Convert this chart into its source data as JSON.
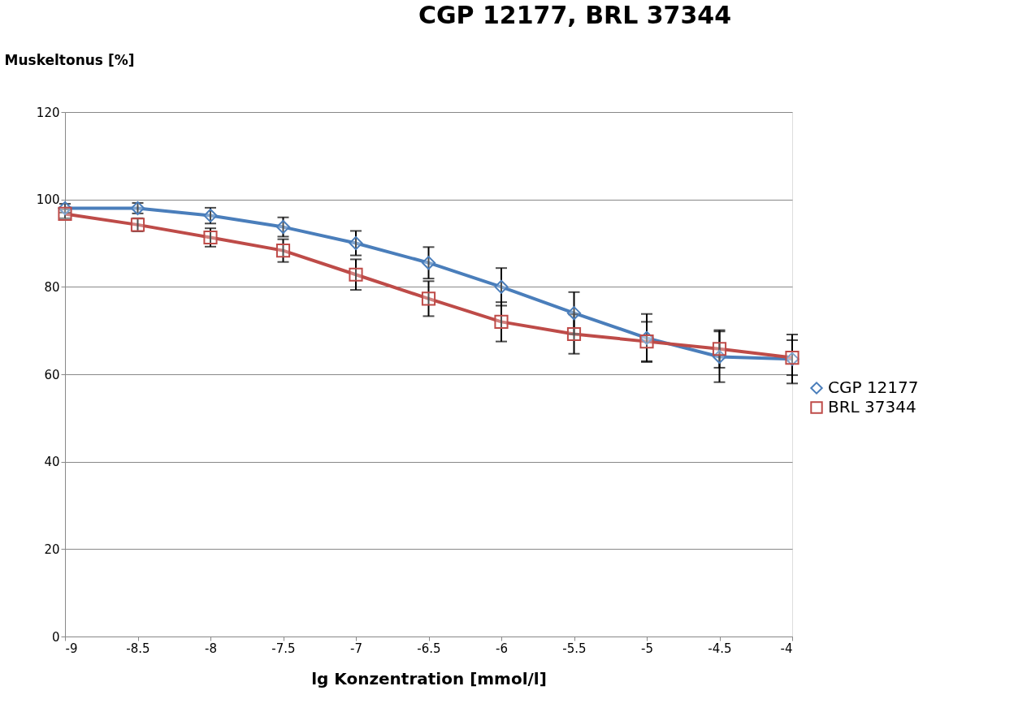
{
  "chart_data": {
    "type": "line",
    "title": "CGP 12177, BRL 37344",
    "xlabel": "lg Konzentration [mmol/l]",
    "ylabel": "Muskeltonus [%]",
    "x": [
      -9,
      -8.5,
      -8,
      -7.5,
      -7,
      -6.5,
      -6,
      -5.5,
      -5,
      -4.5,
      -4
    ],
    "series": [
      {
        "name": "CGP 12177",
        "color": "#4a7ebb",
        "marker": "diamond",
        "values": [
          98,
          98,
          96.3,
          93.7,
          90,
          85.5,
          80,
          74,
          68.3,
          64,
          63.5
        ],
        "errors": [
          1,
          1.2,
          1.8,
          2.2,
          2.8,
          3.6,
          4.3,
          4.8,
          5.5,
          5.8,
          5.6
        ]
      },
      {
        "name": "BRL 37344",
        "color": "#be4b48",
        "marker": "square",
        "values": [
          96.7,
          94.2,
          91.3,
          88.3,
          82.8,
          77.3,
          72,
          69.2,
          67.5,
          65.8,
          63.8
        ],
        "errors": [
          1,
          1.5,
          2.1,
          2.6,
          3.5,
          4,
          4.5,
          4.5,
          4.5,
          4.3,
          4
        ]
      }
    ],
    "xlim": [
      -9,
      -4
    ],
    "xticks": [
      -9,
      -8.5,
      -8,
      -7.5,
      -7,
      -6.5,
      -6,
      -5.5,
      -5,
      -4.5,
      -4
    ],
    "ylim": [
      0,
      120
    ],
    "yticks": [
      0,
      20,
      40,
      60,
      80,
      100,
      120
    ],
    "grid": "y",
    "legend": "right",
    "line_style": "solid"
  }
}
